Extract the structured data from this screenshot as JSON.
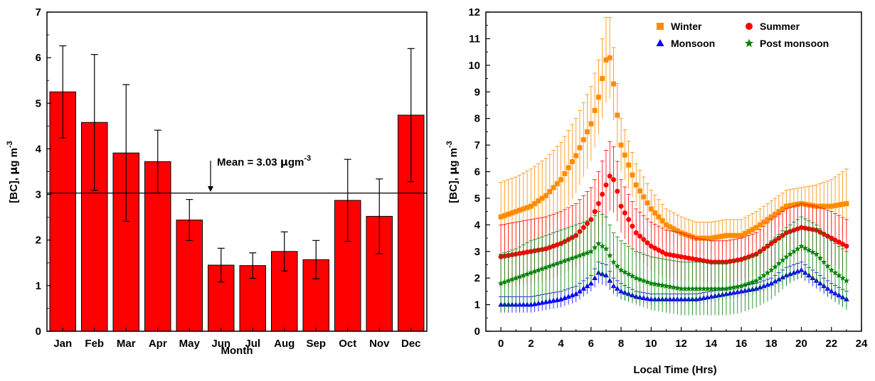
{
  "chart_data": [
    {
      "type": "bar",
      "xlabel": "Month",
      "ylabel_main": "[BC], ",
      "ylabel_mu": "μ",
      "ylabel_rest": "g m",
      "ylabel_sup": "-3",
      "categories": [
        "Jan",
        "Feb",
        "Mar",
        "Apr",
        "May",
        "Jun",
        "Jul",
        "Aug",
        "Sep",
        "Oct",
        "Nov",
        "Dec"
      ],
      "values": [
        5.25,
        4.58,
        3.91,
        3.72,
        2.44,
        1.45,
        1.44,
        1.75,
        1.57,
        2.87,
        2.52,
        4.74
      ],
      "errors": [
        1.01,
        1.49,
        1.5,
        0.69,
        0.45,
        0.37,
        0.28,
        0.43,
        0.42,
        0.9,
        0.82,
        1.46
      ],
      "bar_color": "#ff0000",
      "ylim": [
        0,
        7
      ],
      "yticks": [
        "0",
        "1",
        "2",
        "3",
        "4",
        "5",
        "6",
        "7"
      ],
      "mean_value": 3.03,
      "mean_label_prefix": "Mean = 3.03 ",
      "mean_label_mu": "μ",
      "mean_label_unit": "gm",
      "mean_label_sup": "-3"
    },
    {
      "type": "scatter",
      "xlabel": "Local Time (Hrs)",
      "ylabel_main": "[BC], ",
      "ylabel_mu": "μ",
      "ylabel_rest": "g m",
      "ylabel_sup": "-3",
      "xlim": [
        -1,
        24
      ],
      "ylim": [
        0,
        12
      ],
      "xticks": [
        "0",
        "2",
        "4",
        "6",
        "8",
        "10",
        "12",
        "14",
        "16",
        "18",
        "20",
        "22",
        "24"
      ],
      "yticks": [
        "0",
        "1",
        "2",
        "3",
        "4",
        "5",
        "6",
        "7",
        "8",
        "9",
        "10",
        "11",
        "12"
      ],
      "legend_position": "top-right",
      "series": [
        {
          "name": "Winter",
          "color": "#ff8c00",
          "marker": "square",
          "x": [
            0,
            1,
            2,
            3,
            4,
            5,
            6,
            6.5,
            7,
            7.3,
            7.6,
            8,
            9,
            10,
            11,
            12,
            13,
            14,
            15,
            16,
            17,
            18,
            19,
            20,
            21,
            22,
            23
          ],
          "y": [
            4.3,
            4.5,
            4.7,
            5.1,
            5.7,
            6.6,
            7.8,
            8.8,
            10.2,
            10.3,
            8.8,
            7.0,
            5.5,
            4.6,
            4.0,
            3.7,
            3.5,
            3.5,
            3.6,
            3.6,
            3.9,
            4.3,
            4.7,
            4.8,
            4.7,
            4.7,
            4.8
          ],
          "err": [
            1.3,
            1.3,
            1.4,
            1.4,
            1.4,
            1.4,
            1.4,
            1.4,
            1.6,
            1.5,
            1.3,
            1.0,
            0.8,
            0.7,
            0.6,
            0.6,
            0.6,
            0.6,
            0.6,
            0.6,
            0.6,
            0.6,
            0.6,
            0.6,
            0.8,
            1.0,
            1.3
          ]
        },
        {
          "name": "Summer",
          "color": "#ff0000",
          "marker": "circle",
          "x": [
            0,
            1,
            2,
            3,
            4,
            5,
            6,
            6.5,
            7,
            7.3,
            7.6,
            8,
            9,
            10,
            11,
            12,
            13,
            14,
            15,
            16,
            17,
            18,
            19,
            20,
            21,
            22,
            23
          ],
          "y": [
            2.8,
            2.9,
            3.0,
            3.1,
            3.3,
            3.6,
            4.2,
            4.8,
            5.5,
            5.9,
            5.6,
            4.7,
            3.7,
            3.2,
            2.9,
            2.8,
            2.7,
            2.6,
            2.6,
            2.7,
            2.9,
            3.3,
            3.7,
            3.9,
            3.8,
            3.5,
            3.2
          ],
          "err": [
            1.2,
            1.2,
            1.2,
            1.2,
            1.2,
            1.2,
            1.2,
            1.2,
            1.3,
            1.3,
            1.2,
            1.0,
            0.9,
            0.9,
            0.9,
            0.9,
            0.8,
            0.8,
            0.8,
            0.8,
            0.8,
            0.9,
            0.9,
            0.9,
            0.9,
            1.0,
            1.0
          ]
        },
        {
          "name": "Monsoon",
          "color": "#0000ff",
          "marker": "triangle",
          "x": [
            0,
            1,
            2,
            3,
            4,
            5,
            6,
            6.5,
            7,
            7.5,
            8,
            9,
            10,
            11,
            12,
            13,
            14,
            15,
            16,
            17,
            18,
            19,
            20,
            21,
            22,
            23
          ],
          "y": [
            1.0,
            1.0,
            1.0,
            1.1,
            1.2,
            1.4,
            1.8,
            2.2,
            2.1,
            1.7,
            1.5,
            1.3,
            1.2,
            1.2,
            1.2,
            1.2,
            1.3,
            1.4,
            1.5,
            1.6,
            1.8,
            2.1,
            2.3,
            1.9,
            1.5,
            1.2
          ],
          "err": [
            0.3,
            0.3,
            0.3,
            0.3,
            0.3,
            0.3,
            0.3,
            0.4,
            0.4,
            0.3,
            0.3,
            0.2,
            0.2,
            0.2,
            0.2,
            0.2,
            0.2,
            0.2,
            0.2,
            0.2,
            0.2,
            0.3,
            0.3,
            0.3,
            0.3,
            0.3
          ]
        },
        {
          "name": "Post monsoon",
          "color": "#008000",
          "marker": "star",
          "x": [
            0,
            1,
            2,
            3,
            4,
            5,
            6,
            6.5,
            7,
            7.5,
            8,
            9,
            10,
            11,
            12,
            13,
            14,
            15,
            16,
            17,
            18,
            19,
            20,
            21,
            22,
            23
          ],
          "y": [
            1.8,
            2.0,
            2.2,
            2.4,
            2.6,
            2.8,
            3.0,
            3.3,
            3.1,
            2.6,
            2.3,
            2.0,
            1.8,
            1.7,
            1.6,
            1.6,
            1.6,
            1.6,
            1.7,
            1.9,
            2.3,
            2.8,
            3.2,
            2.9,
            2.3,
            1.9
          ],
          "err": [
            1.1,
            1.1,
            1.2,
            1.2,
            1.2,
            1.2,
            1.2,
            1.2,
            1.2,
            1.1,
            1.1,
            1.0,
            1.0,
            1.0,
            1.0,
            1.0,
            1.0,
            1.0,
            1.0,
            1.0,
            1.1,
            1.1,
            1.1,
            1.1,
            1.1,
            1.1
          ]
        }
      ]
    }
  ]
}
